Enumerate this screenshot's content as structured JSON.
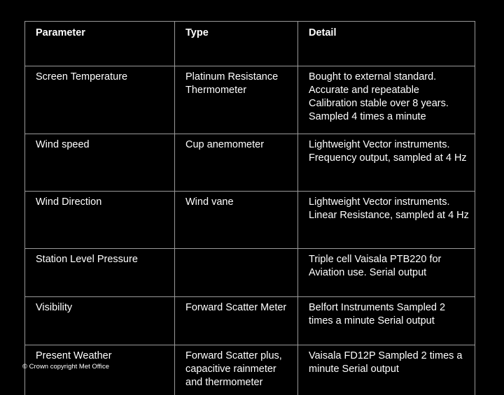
{
  "table": {
    "headers": [
      "Parameter",
      "Type",
      "Detail"
    ],
    "rows": [
      {
        "parameter": "Screen Temperature",
        "type": "Platinum Resistance Thermometer",
        "detail": "Bought to external standard. Accurate and repeatable Calibration stable over 8 years. Sampled 4 times a minute"
      },
      {
        "parameter": "Wind speed",
        "type": "Cup anemometer",
        "detail": "Lightweight Vector instruments. Frequency output, sampled at 4 Hz"
      },
      {
        "parameter": "Wind Direction",
        "type": "Wind vane",
        "detail": "Lightweight Vector instruments. Linear Resistance, sampled at 4 Hz"
      },
      {
        "parameter": "Station Level Pressure",
        "type": "",
        "detail": "Triple cell Vaisala PTB220 for Aviation use.  Serial output"
      },
      {
        "parameter": "Visibility",
        "type": "Forward Scatter Meter",
        "detail": "Belfort Instruments Sampled 2 times a minute Serial output"
      },
      {
        "parameter": "Present Weather",
        "type": "Forward Scatter plus, capacitive rainmeter and thermometer",
        "detail": "Vaisala FD12P Sampled 2 times a minute Serial output"
      }
    ]
  },
  "footer": {
    "copyright": "© Crown copyright   Met Office"
  }
}
